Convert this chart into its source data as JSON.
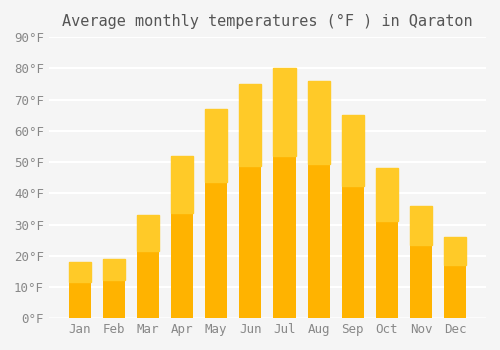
{
  "title": "Average monthly temperatures (°F ) in Qaraton",
  "months": [
    "Jan",
    "Feb",
    "Mar",
    "Apr",
    "May",
    "Jun",
    "Jul",
    "Aug",
    "Sep",
    "Oct",
    "Nov",
    "Dec"
  ],
  "values": [
    18,
    19,
    33,
    52,
    67,
    75,
    80,
    76,
    65,
    48,
    36,
    26
  ],
  "bar_color_top": "#FFC107",
  "bar_color_bottom": "#FFB300",
  "bar_color": "#FFA500",
  "ylim": [
    0,
    90
  ],
  "yticks": [
    0,
    10,
    20,
    30,
    40,
    50,
    60,
    70,
    80,
    90
  ],
  "ytick_labels": [
    "0°F",
    "10°F",
    "20°F",
    "30°F",
    "40°F",
    "50°F",
    "60°F",
    "70°F",
    "80°F",
    "90°F"
  ],
  "background_color": "#f5f5f5",
  "grid_color": "#ffffff",
  "bar_edge_color": "none",
  "title_fontsize": 11,
  "tick_fontsize": 9,
  "font_family": "monospace"
}
